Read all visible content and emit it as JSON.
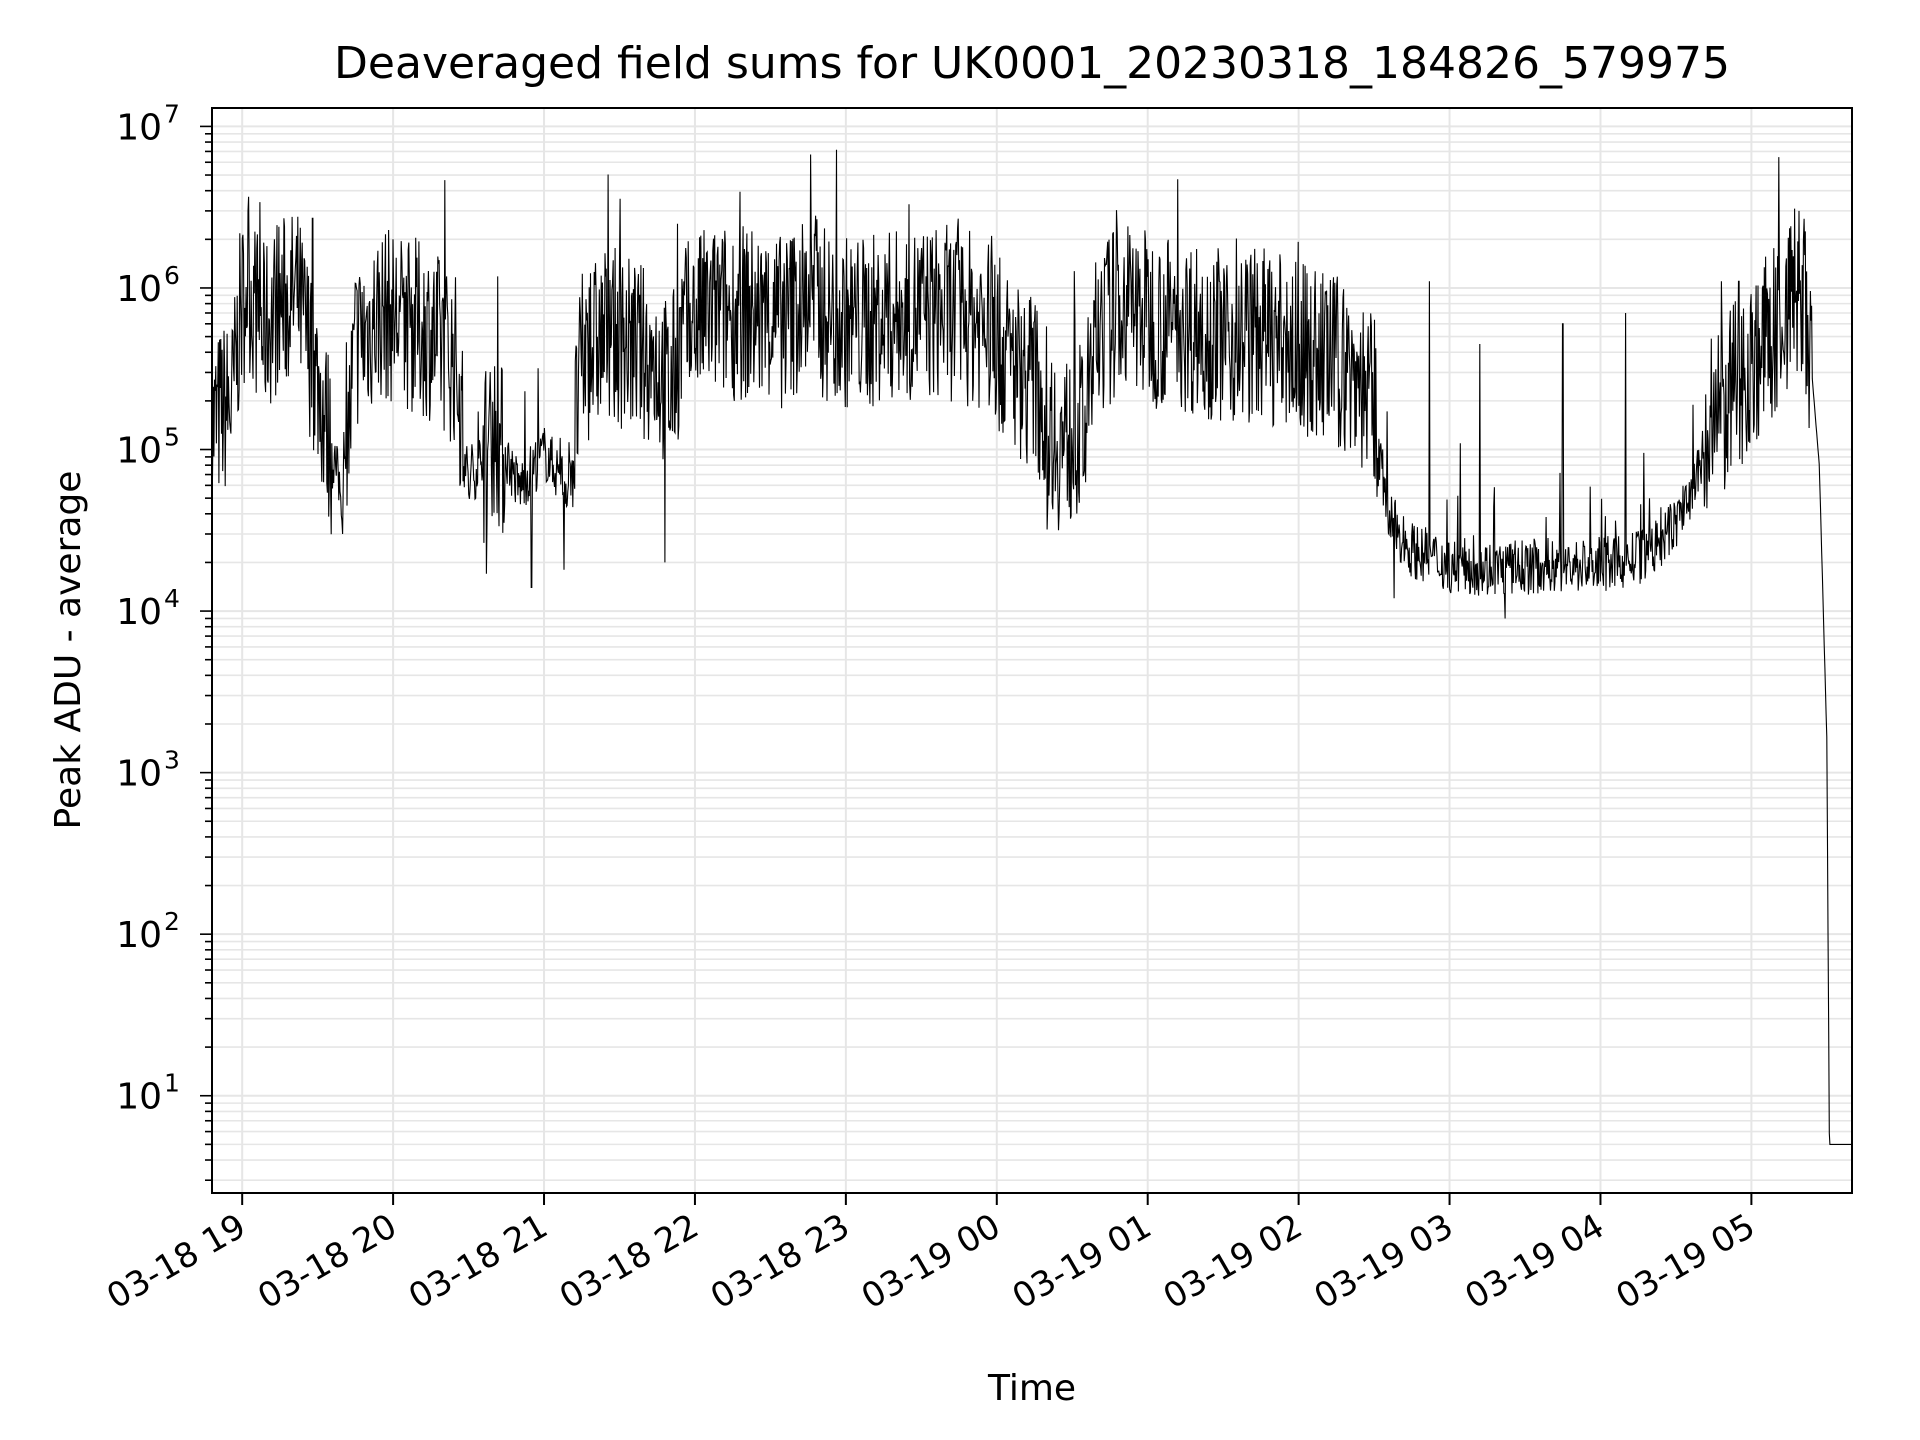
{
  "chart_data": {
    "type": "line",
    "title": "Deaveraged field sums for UK0001_20230318_184826_579975",
    "xlabel": "Time",
    "ylabel": "Peak ADU - average",
    "y_scale": "log",
    "ylim": [
      2.5,
      13000000
    ],
    "xlim": [
      "2023-03-18 18:48",
      "2023-03-19 05:40"
    ],
    "grid": true,
    "x_ticks": [
      "03-18 19",
      "03-18 20",
      "03-18 21",
      "03-18 22",
      "03-18 23",
      "03-19 00",
      "03-19 01",
      "03-19 02",
      "03-19 03",
      "03-19 04",
      "03-19 05"
    ],
    "x_tick_times": [
      "2023-03-18 19:00",
      "2023-03-18 20:00",
      "2023-03-18 21:00",
      "2023-03-18 22:00",
      "2023-03-18 23:00",
      "2023-03-19 00:00",
      "2023-03-19 01:00",
      "2023-03-19 02:00",
      "2023-03-19 03:00",
      "2023-03-19 04:00",
      "2023-03-19 05:00"
    ],
    "y_ticks": [
      {
        "value": 10,
        "base": "10",
        "exp": "1"
      },
      {
        "value": 100,
        "base": "10",
        "exp": "2"
      },
      {
        "value": 1000,
        "base": "10",
        "exp": "3"
      },
      {
        "value": 10000,
        "base": "10",
        "exp": "4"
      },
      {
        "value": 100000,
        "base": "10",
        "exp": "5"
      },
      {
        "value": 1000000,
        "base": "10",
        "exp": "6"
      },
      {
        "value": 10000000,
        "base": "10",
        "exp": "7"
      }
    ],
    "line_color": "#000000",
    "grid_color": "#e6e6e6",
    "series": [
      {
        "points": [
          [
            "2023-03-18 18:48",
            150000
          ],
          [
            "2023-03-18 18:52",
            200000
          ],
          [
            "2023-03-18 18:56",
            220000
          ],
          [
            "2023-03-18 18:59",
            700000
          ],
          [
            "2023-03-18 19:02",
            1300000
          ],
          [
            "2023-03-18 19:08",
            600000
          ],
          [
            "2023-03-18 19:15",
            900000
          ],
          [
            "2023-03-18 19:22",
            1000000
          ],
          [
            "2023-03-18 19:30",
            300000
          ],
          [
            "2023-03-18 19:36",
            100000
          ],
          [
            "2023-03-18 19:40",
            50000
          ],
          [
            "2023-03-18 19:45",
            500000
          ],
          [
            "2023-03-18 19:55",
            800000
          ],
          [
            "2023-03-18 20:05",
            700000
          ],
          [
            "2023-03-18 20:15",
            600000
          ],
          [
            "2023-03-18 20:25",
            400000
          ],
          [
            "2023-03-18 20:30",
            60000
          ],
          [
            "2023-03-18 20:40",
            150000
          ],
          [
            "2023-03-18 20:50",
            60000
          ],
          [
            "2023-03-18 21:00",
            100000
          ],
          [
            "2023-03-18 21:10",
            60000
          ],
          [
            "2023-03-18 21:15",
            400000
          ],
          [
            "2023-03-18 21:25",
            600000
          ],
          [
            "2023-03-18 21:35",
            500000
          ],
          [
            "2023-03-18 21:45",
            400000
          ],
          [
            "2023-03-18 21:50",
            250000
          ],
          [
            "2023-03-18 21:55",
            600000
          ],
          [
            "2023-03-18 22:05",
            800000
          ],
          [
            "2023-03-18 22:20",
            800000
          ],
          [
            "2023-03-18 22:35",
            700000
          ],
          [
            "2023-03-18 22:45",
            1000000
          ],
          [
            "2023-03-18 22:55",
            700000
          ],
          [
            "2023-03-18 23:10",
            700000
          ],
          [
            "2023-03-18 23:25",
            800000
          ],
          [
            "2023-03-18 23:40",
            800000
          ],
          [
            "2023-03-18 23:55",
            700000
          ],
          [
            "2023-03-19 00:05",
            400000
          ],
          [
            "2023-03-19 00:15",
            300000
          ],
          [
            "2023-03-19 00:25",
            120000
          ],
          [
            "2023-03-19 00:35",
            150000
          ],
          [
            "2023-03-19 00:40",
            600000
          ],
          [
            "2023-03-19 00:50",
            900000
          ],
          [
            "2023-03-19 01:05",
            700000
          ],
          [
            "2023-03-19 01:20",
            650000
          ],
          [
            "2023-03-19 01:35",
            550000
          ],
          [
            "2023-03-19 01:45",
            600000
          ],
          [
            "2023-03-19 01:55",
            500000
          ],
          [
            "2023-03-19 02:05",
            450000
          ],
          [
            "2023-03-19 02:15",
            400000
          ],
          [
            "2023-03-19 02:25",
            300000
          ],
          [
            "2023-03-19 02:30",
            200000
          ],
          [
            "2023-03-19 02:35",
            40000
          ],
          [
            "2023-03-19 02:45",
            25000
          ],
          [
            "2023-03-19 03:00",
            20000
          ],
          [
            "2023-03-19 03:20",
            19000
          ],
          [
            "2023-03-19 03:40",
            20000
          ],
          [
            "2023-03-19 04:00",
            20000
          ],
          [
            "2023-03-19 04:15",
            22000
          ],
          [
            "2023-03-19 04:25",
            28000
          ],
          [
            "2023-03-19 04:35",
            50000
          ],
          [
            "2023-03-19 04:45",
            150000
          ],
          [
            "2023-03-19 04:55",
            300000
          ],
          [
            "2023-03-19 05:05",
            500000
          ],
          [
            "2023-03-19 05:12",
            700000
          ],
          [
            "2023-03-19 05:17",
            1100000
          ],
          [
            "2023-03-19 05:20",
            900000
          ],
          [
            "2023-03-19 05:24",
            300000
          ],
          [
            "2023-03-19 05:27",
            80000
          ],
          [
            "2023-03-19 05:30",
            1600
          ],
          [
            "2023-03-19 05:31",
            5
          ],
          [
            "2023-03-19 05:40",
            5
          ]
        ],
        "peaks": [
          [
            "2023-03-18 19:07",
            3400000
          ],
          [
            "2023-03-18 19:28",
            2700000
          ],
          [
            "2023-03-18 21:53",
            2500000
          ],
          [
            "2023-03-18 22:46",
            6700000
          ],
          [
            "2023-03-18 22:48",
            2800000
          ],
          [
            "2023-03-18 23:25",
            3300000
          ],
          [
            "2023-03-18 23:58",
            2100000
          ],
          [
            "2023-03-19 02:52",
            1100000
          ],
          [
            "2023-03-19 04:48",
            1100000
          ],
          [
            "2023-03-19 04:55",
            1100000
          ],
          [
            "2023-03-19 05:19",
            3000000
          ],
          [
            "2023-03-19 04:10",
            700000
          ],
          [
            "2023-03-19 03:45",
            600000
          ],
          [
            "2023-03-19 03:12",
            450000
          ]
        ],
        "dips": [
          [
            "2023-03-18 19:40",
            30000
          ],
          [
            "2023-03-18 20:37",
            17000
          ],
          [
            "2023-03-18 20:55",
            14000
          ],
          [
            "2023-03-18 21:08",
            18000
          ],
          [
            "2023-03-18 21:48",
            20000
          ],
          [
            "2023-03-19 00:20",
            32000
          ],
          [
            "2023-03-19 02:38",
            12000
          ],
          [
            "2023-03-19 03:22",
            9000
          ]
        ]
      }
    ]
  }
}
